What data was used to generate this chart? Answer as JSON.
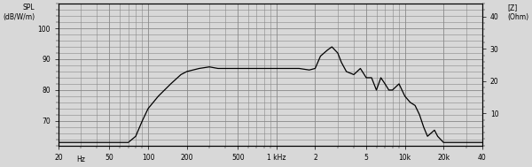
{
  "title_left": "SPL\n(dB/W/m)",
  "title_right": "[Z]\n(Ohm)",
  "xlim": [
    20,
    40000
  ],
  "ylim_left": [
    62,
    108
  ],
  "ylim_right": [
    0,
    44
  ],
  "yticks_left": [
    70,
    80,
    90,
    100
  ],
  "yticks_right": [
    10,
    20,
    30,
    40
  ],
  "xtick_labels": [
    "20",
    "Hz",
    "50",
    "100",
    "200",
    "500",
    "1 kHz",
    "2",
    "5",
    "10k",
    "20k",
    "40"
  ],
  "xtick_positions": [
    20,
    30,
    50,
    100,
    200,
    500,
    1000,
    2000,
    5000,
    10000,
    20000,
    40000
  ],
  "bg_color": "#d8d8d8",
  "grid_color": "#888888",
  "line_color": "#000000",
  "freq_response": [
    [
      20,
      63
    ],
    [
      30,
      63
    ],
    [
      50,
      63
    ],
    [
      70,
      63
    ],
    [
      80,
      65
    ],
    [
      90,
      70
    ],
    [
      100,
      74
    ],
    [
      120,
      78
    ],
    [
      150,
      82
    ],
    [
      180,
      85
    ],
    [
      200,
      86
    ],
    [
      250,
      87
    ],
    [
      300,
      87.5
    ],
    [
      350,
      87
    ],
    [
      400,
      87
    ],
    [
      450,
      87
    ],
    [
      500,
      87
    ],
    [
      600,
      87
    ],
    [
      700,
      87
    ],
    [
      800,
      87
    ],
    [
      900,
      87
    ],
    [
      1000,
      87
    ],
    [
      1200,
      87
    ],
    [
      1500,
      87
    ],
    [
      1800,
      86.5
    ],
    [
      2000,
      87
    ],
    [
      2200,
      91
    ],
    [
      2500,
      93
    ],
    [
      2700,
      94
    ],
    [
      3000,
      92
    ],
    [
      3200,
      89
    ],
    [
      3500,
      86
    ],
    [
      4000,
      85
    ],
    [
      4500,
      87
    ],
    [
      5000,
      84
    ],
    [
      5500,
      84
    ],
    [
      6000,
      80
    ],
    [
      6500,
      84
    ],
    [
      7000,
      82
    ],
    [
      7500,
      80
    ],
    [
      8000,
      80
    ],
    [
      9000,
      82
    ],
    [
      10000,
      78
    ],
    [
      11000,
      76
    ],
    [
      12000,
      75
    ],
    [
      13000,
      72
    ],
    [
      14000,
      68
    ],
    [
      15000,
      65
    ],
    [
      17000,
      67
    ],
    [
      18000,
      65
    ],
    [
      20000,
      63
    ],
    [
      25000,
      63
    ],
    [
      30000,
      63
    ],
    [
      40000,
      63
    ]
  ]
}
